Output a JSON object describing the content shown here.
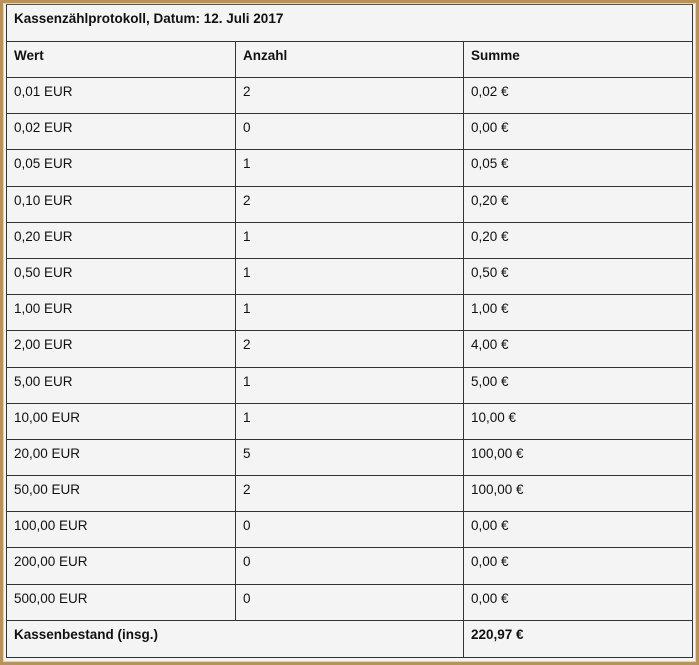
{
  "title": "Kassenzählprotokoll, Datum: 12. Juli 2017",
  "headers": [
    "Wert",
    "Anzahl",
    "Summe"
  ],
  "rows": [
    [
      "0,01 EUR",
      "2",
      "0,02 €"
    ],
    [
      "0,02 EUR",
      "0",
      "0,00 €"
    ],
    [
      "0,05 EUR",
      "1",
      "0,05 €"
    ],
    [
      "0,10 EUR",
      "2",
      "0,20 €"
    ],
    [
      "0,20 EUR",
      "1",
      "0,20 €"
    ],
    [
      "0,50 EUR",
      "1",
      "0,50 €"
    ],
    [
      "1,00 EUR",
      "1",
      "1,00 €"
    ],
    [
      "2,00 EUR",
      "2",
      "4,00 €"
    ],
    [
      "5,00 EUR",
      "1",
      "5,00 €"
    ],
    [
      "10,00 EUR",
      "1",
      "10,00 €"
    ],
    [
      "20,00 EUR",
      "5",
      "100,00 €"
    ],
    [
      "50,00 EUR",
      "2",
      "100,00 €"
    ],
    [
      "100,00 EUR",
      "0",
      "0,00 €"
    ],
    [
      "200,00 EUR",
      "0",
      "0,00 €"
    ],
    [
      "500,00 EUR",
      "0",
      "0,00 €"
    ]
  ],
  "total": {
    "label": "Kassenbestand (insg.)",
    "value": "220,97 €"
  },
  "colors": {
    "frame": "#b8925a",
    "background": "#f4f4f4"
  }
}
